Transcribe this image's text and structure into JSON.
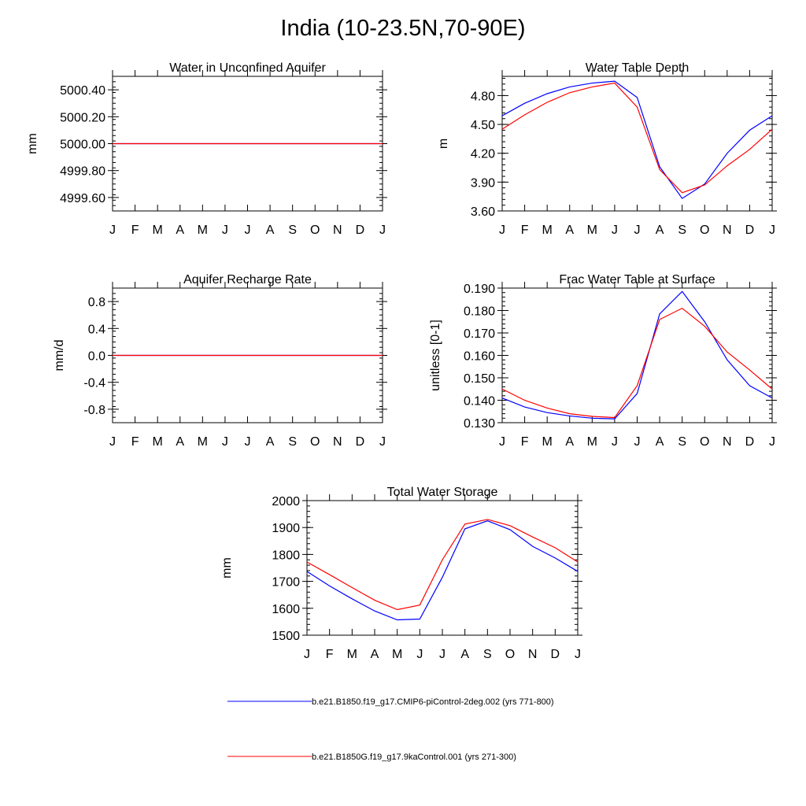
{
  "title": "India (10-23.5N,70-90E)",
  "colors": {
    "series_a": "#0000ff",
    "series_b": "#ff0000"
  },
  "legend": [
    {
      "label": "b.e21.B1850.f19_g17.CMIP6-piControl-2deg.002 (yrs 771-800)",
      "color": "#0000ff"
    },
    {
      "label": "b.e21.B1850G.f19_g17.9kaControl.001 (yrs 271-300)",
      "color": "#ff0000"
    }
  ],
  "chart_data": [
    {
      "id": "aquifer",
      "type": "line",
      "title": "Water in Unconfined Aquifer",
      "xlabel": "",
      "ylabel": "mm",
      "categories": [
        "J",
        "F",
        "M",
        "A",
        "M",
        "J",
        "J",
        "A",
        "S",
        "O",
        "N",
        "D",
        "J"
      ],
      "ylim": [
        4999.5,
        5000.5
      ],
      "yticks": [
        4999.6,
        4999.8,
        5000.0,
        5000.2,
        5000.4
      ],
      "ytick_labels": [
        "4999.60",
        "4999.80",
        "5000.00",
        "5000.20",
        "5000.40"
      ],
      "series": [
        {
          "name": "b.e21.B1850.f19_g17.CMIP6-piControl-2deg.002 (yrs 771-800)",
          "values": [
            5000,
            5000,
            5000,
            5000,
            5000,
            5000,
            5000,
            5000,
            5000,
            5000,
            5000,
            5000,
            5000
          ]
        },
        {
          "name": "b.e21.B1850G.f19_g17.9kaControl.001 (yrs 271-300)",
          "values": [
            5000,
            5000,
            5000,
            5000,
            5000,
            5000,
            5000,
            5000,
            5000,
            5000,
            5000,
            5000,
            5000
          ]
        }
      ]
    },
    {
      "id": "wtd",
      "type": "line",
      "title": "Water Table Depth",
      "xlabel": "",
      "ylabel": "m",
      "categories": [
        "J",
        "F",
        "M",
        "A",
        "M",
        "J",
        "J",
        "A",
        "S",
        "O",
        "N",
        "D",
        "J"
      ],
      "ylim": [
        3.6,
        5.0
      ],
      "yticks": [
        3.6,
        3.9,
        4.2,
        4.5,
        4.8
      ],
      "ytick_labels": [
        "3.60",
        "3.90",
        "4.20",
        "4.50",
        "4.80"
      ],
      "series": [
        {
          "name": "b.e21.B1850.f19_g17.CMIP6-piControl-2deg.002 (yrs 771-800)",
          "values": [
            4.59,
            4.72,
            4.82,
            4.89,
            4.93,
            4.95,
            4.78,
            4.06,
            3.73,
            3.88,
            4.2,
            4.44,
            4.59
          ]
        },
        {
          "name": "b.e21.B1850G.f19_g17.9kaControl.001 (yrs 271-300)",
          "values": [
            4.45,
            4.6,
            4.73,
            4.83,
            4.89,
            4.93,
            4.68,
            4.03,
            3.79,
            3.87,
            4.07,
            4.24,
            4.45
          ]
        }
      ]
    },
    {
      "id": "recharge",
      "type": "line",
      "title": "Aquifer Recharge Rate",
      "xlabel": "",
      "ylabel": "mm/d",
      "categories": [
        "J",
        "F",
        "M",
        "A",
        "M",
        "J",
        "J",
        "A",
        "S",
        "O",
        "N",
        "D",
        "J"
      ],
      "ylim": [
        -1.0,
        1.0
      ],
      "yticks": [
        -0.8,
        -0.4,
        0.0,
        0.4,
        0.8
      ],
      "ytick_labels": [
        "-0.8",
        "-0.4",
        "0.0",
        "0.4",
        "0.8"
      ],
      "series": [
        {
          "name": "b.e21.B1850.f19_g17.CMIP6-piControl-2deg.002 (yrs 771-800)",
          "values": [
            0,
            0,
            0,
            0,
            0,
            0,
            0,
            0,
            0,
            0,
            0,
            0,
            0
          ]
        },
        {
          "name": "b.e21.B1850G.f19_g17.9kaControl.001 (yrs 271-300)",
          "values": [
            0,
            0,
            0,
            0,
            0,
            0,
            0,
            0,
            0,
            0,
            0,
            0,
            0
          ]
        }
      ]
    },
    {
      "id": "fwt",
      "type": "line",
      "title": "Frac Water Table at Surface",
      "xlabel": "",
      "ylabel": "unitless [0-1]",
      "categories": [
        "J",
        "F",
        "M",
        "A",
        "M",
        "J",
        "J",
        "A",
        "S",
        "O",
        "N",
        "D",
        "J"
      ],
      "ylim": [
        0.13,
        0.19
      ],
      "yticks": [
        0.13,
        0.14,
        0.15,
        0.16,
        0.17,
        0.18,
        0.19
      ],
      "ytick_labels": [
        "0.130",
        "0.140",
        "0.150",
        "0.160",
        "0.170",
        "0.180",
        "0.190"
      ],
      "series": [
        {
          "name": "b.e21.B1850.f19_g17.CMIP6-piControl-2deg.002 (yrs 771-800)",
          "values": [
            0.141,
            0.137,
            0.1345,
            0.133,
            0.132,
            0.1317,
            0.143,
            0.1785,
            0.1885,
            0.175,
            0.158,
            0.1465,
            0.141
          ]
        },
        {
          "name": "b.e21.B1850G.f19_g17.9kaControl.001 (yrs 271-300)",
          "values": [
            0.145,
            0.14,
            0.1365,
            0.134,
            0.1328,
            0.1323,
            0.1465,
            0.176,
            0.181,
            0.173,
            0.1615,
            0.1535,
            0.145
          ]
        }
      ]
    },
    {
      "id": "tws",
      "type": "line",
      "title": "Total Water Storage",
      "xlabel": "",
      "ylabel": "mm",
      "categories": [
        "J",
        "F",
        "M",
        "A",
        "M",
        "J",
        "J",
        "A",
        "S",
        "O",
        "N",
        "D",
        "J"
      ],
      "ylim": [
        1500,
        2000
      ],
      "yticks": [
        1500,
        1600,
        1700,
        1800,
        1900,
        2000
      ],
      "ytick_labels": [
        "1500",
        "1600",
        "1700",
        "1800",
        "1900",
        "2000"
      ],
      "series": [
        {
          "name": "b.e21.B1850.f19_g17.CMIP6-piControl-2deg.002 (yrs 771-800)",
          "values": [
            1737,
            1683,
            1635,
            1590,
            1557,
            1560,
            1715,
            1895,
            1925,
            1892,
            1830,
            1787,
            1737
          ]
        },
        {
          "name": "b.e21.B1850G.f19_g17.9kaControl.001 (yrs 271-300)",
          "values": [
            1772,
            1725,
            1677,
            1630,
            1595,
            1612,
            1780,
            1913,
            1930,
            1907,
            1865,
            1825,
            1772
          ]
        }
      ]
    }
  ]
}
